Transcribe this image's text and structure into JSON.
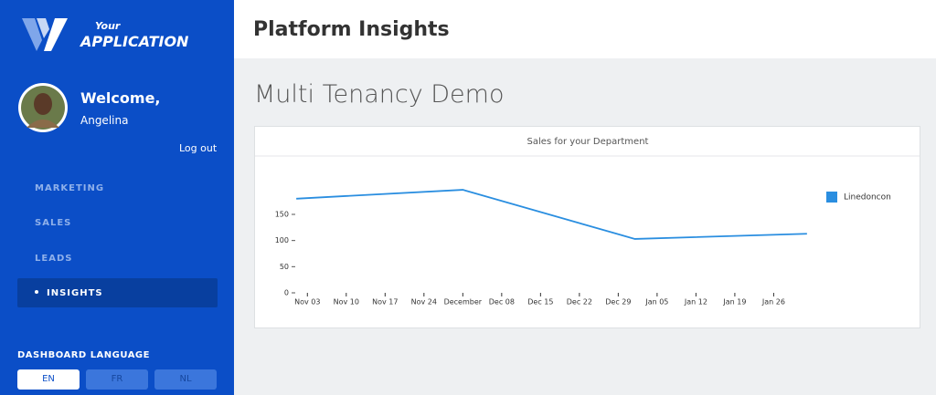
{
  "sidebar": {
    "logo_top": "Your",
    "logo_bottom": "APPLICATION",
    "welcome": "Welcome,",
    "user": "Angelina",
    "logout": "Log out",
    "nav": [
      "MARKETING",
      "SALES",
      "LEADS",
      "INSIGHTS"
    ],
    "language_title": "DASHBOARD LANGUAGE",
    "languages": [
      "EN",
      "FR",
      "NL"
    ]
  },
  "header": {
    "title": "Platform Insights"
  },
  "page": {
    "title": "Multi Tenancy Demo"
  },
  "chart_data": {
    "type": "line",
    "title": "Sales for your Department",
    "x": [
      "Nov 01",
      "Dec 01",
      "Jan 01",
      "Feb 01"
    ],
    "series": [
      {
        "name": "Linedoncon",
        "color": "#2a8ee0",
        "values": [
          180,
          197,
          103,
          113
        ]
      }
    ],
    "xlim": [
      "Oct 30",
      "Feb 03"
    ],
    "xticks": [
      "Nov 03",
      "Nov 10",
      "Nov 17",
      "Nov 24",
      "December",
      "Dec 08",
      "Dec 15",
      "Dec 22",
      "Dec 29",
      "Jan 05",
      "Jan 12",
      "Jan 19",
      "Jan 26"
    ],
    "ylim": [
      0,
      225
    ],
    "yticks": [
      0,
      50,
      100,
      150
    ],
    "legend": "right"
  }
}
